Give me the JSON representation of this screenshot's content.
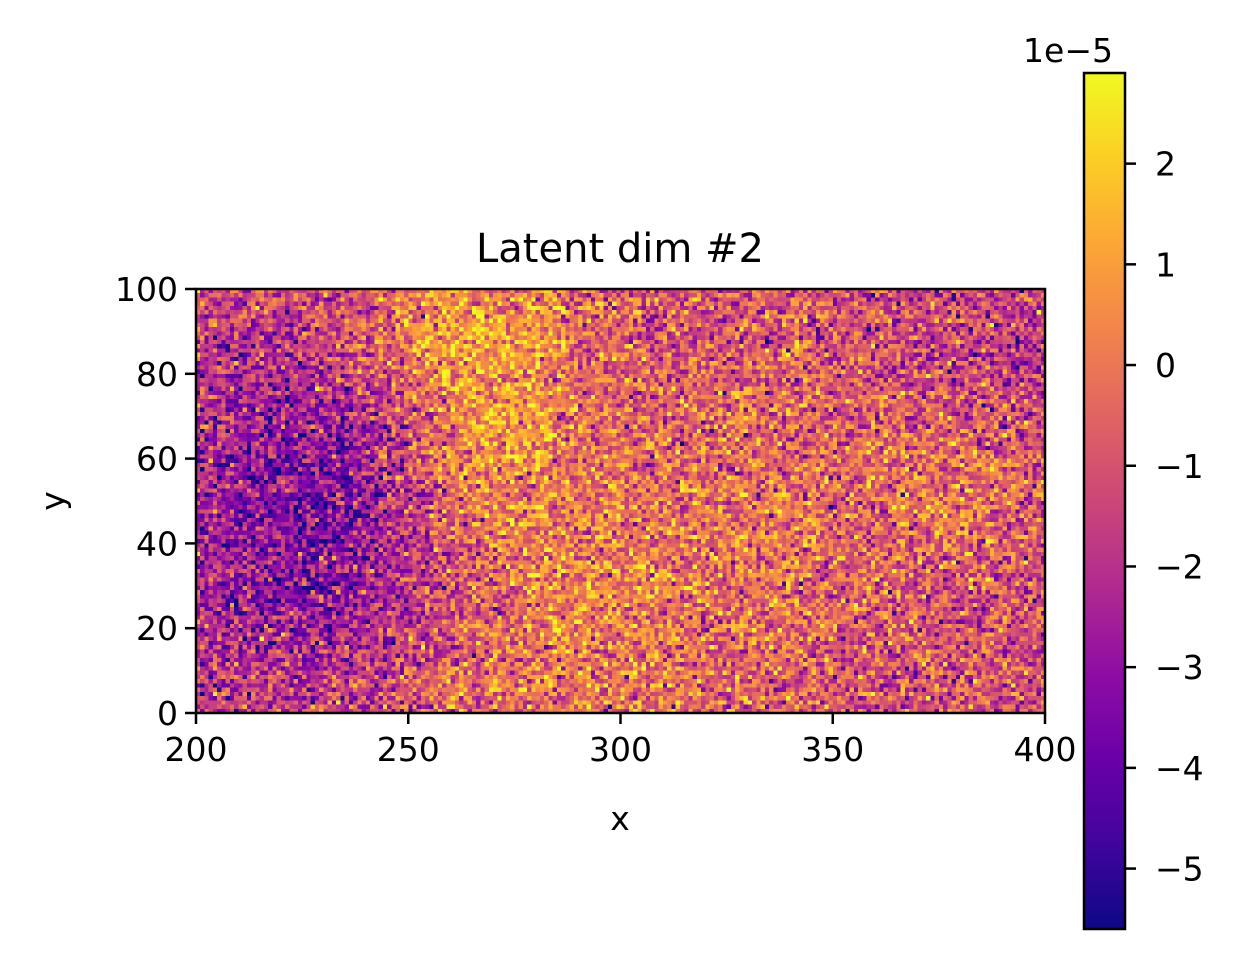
{
  "chart_data": {
    "type": "heatmap",
    "title": "Latent dim #2",
    "xlabel": "x",
    "ylabel": "y",
    "xlim": [
      200,
      400
    ],
    "ylim": [
      0,
      100
    ],
    "xticks": [
      200,
      250,
      300,
      350,
      400
    ],
    "yticks": [
      0,
      20,
      40,
      60,
      80,
      100
    ],
    "xtick_labels": [
      "200",
      "250",
      "300",
      "350",
      "400"
    ],
    "ytick_labels": [
      "0",
      "20",
      "40",
      "60",
      "80",
      "100"
    ],
    "colormap": "plasma",
    "grid": false,
    "colorbar": {
      "range": [
        -5.6e-05,
        2.9e-05
      ],
      "ticks": [
        -5,
        -4,
        -3,
        -2,
        -1,
        0,
        1,
        2
      ],
      "tick_labels": [
        "−5",
        "−4",
        "−3",
        "−2",
        "−1",
        "0",
        "1",
        "2"
      ],
      "offset_label": "1e−5",
      "placement": "right"
    },
    "value_pattern": {
      "resolution": [
        200,
        100
      ],
      "noise_std": 1.5e-05,
      "background": -1e-05,
      "features": [
        {
          "x": 225,
          "y": 45,
          "sx": 22,
          "sy": 30,
          "amp": -2.4e-05
        },
        {
          "x": 268,
          "y": 70,
          "sx": 14,
          "sy": 20,
          "amp": 1.9e-05
        },
        {
          "x": 262,
          "y": 92,
          "sx": 22,
          "sy": 10,
          "amp": 1.2e-05
        },
        {
          "x": 290,
          "y": 25,
          "sx": 20,
          "sy": 18,
          "amp": 1e-05
        },
        {
          "x": 330,
          "y": 45,
          "sx": 30,
          "sy": 25,
          "amp": 8e-06
        },
        {
          "x": 380,
          "y": 55,
          "sx": 12,
          "sy": 10,
          "amp": 9e-06
        },
        {
          "x": 390,
          "y": 85,
          "sx": 15,
          "sy": 15,
          "amp": -8e-06
        },
        {
          "x": 280,
          "y": 5,
          "sx": 40,
          "sy": 5,
          "amp": 6e-06
        }
      ]
    }
  }
}
